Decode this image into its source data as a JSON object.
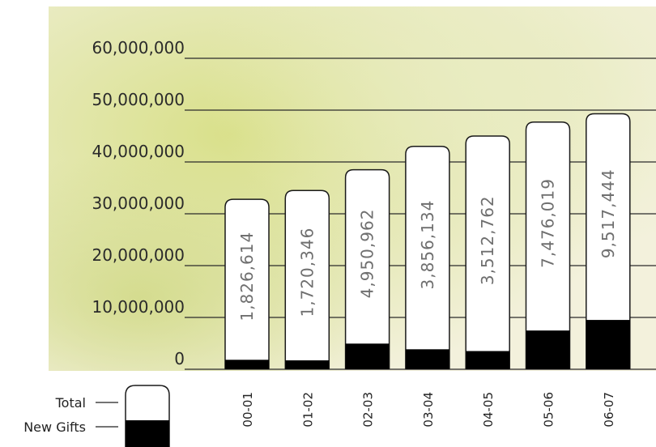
{
  "chart_data": {
    "type": "bar",
    "categories": [
      "00-01",
      "01-02",
      "02-03",
      "03-04",
      "04-05",
      "05-06",
      "06-07"
    ],
    "series": [
      {
        "name": "Total",
        "values": [
          32800000,
          34500000,
          38500000,
          43000000,
          45000000,
          47700000,
          49300000
        ]
      },
      {
        "name": "New Gifts",
        "values": [
          1826614,
          1720346,
          4950962,
          3856134,
          3512762,
          7476019,
          9517444
        ]
      }
    ],
    "data_labels": [
      "1,826,614",
      "1,720,346",
      "4,950,962",
      "3,856,134",
      "3,512,762",
      "7,476,019",
      "9,517,444"
    ],
    "y_ticks": [
      0,
      10000000,
      20000000,
      30000000,
      40000000,
      50000000,
      60000000
    ],
    "y_tick_labels": [
      "0",
      "10,000,000",
      "20,000,000",
      "30,000,000",
      "40,000,000",
      "50,000,000",
      "60,000,000"
    ],
    "ylim": [
      0,
      60000000
    ],
    "grid": true,
    "legend_position": "bottom-left",
    "colors": {
      "total_fill": "#ffffff",
      "new_gifts_fill": "#000000",
      "outline": "#1a1a1a"
    },
    "background": {
      "base": "#e2e6b0",
      "accent": "#c9d27a"
    }
  }
}
